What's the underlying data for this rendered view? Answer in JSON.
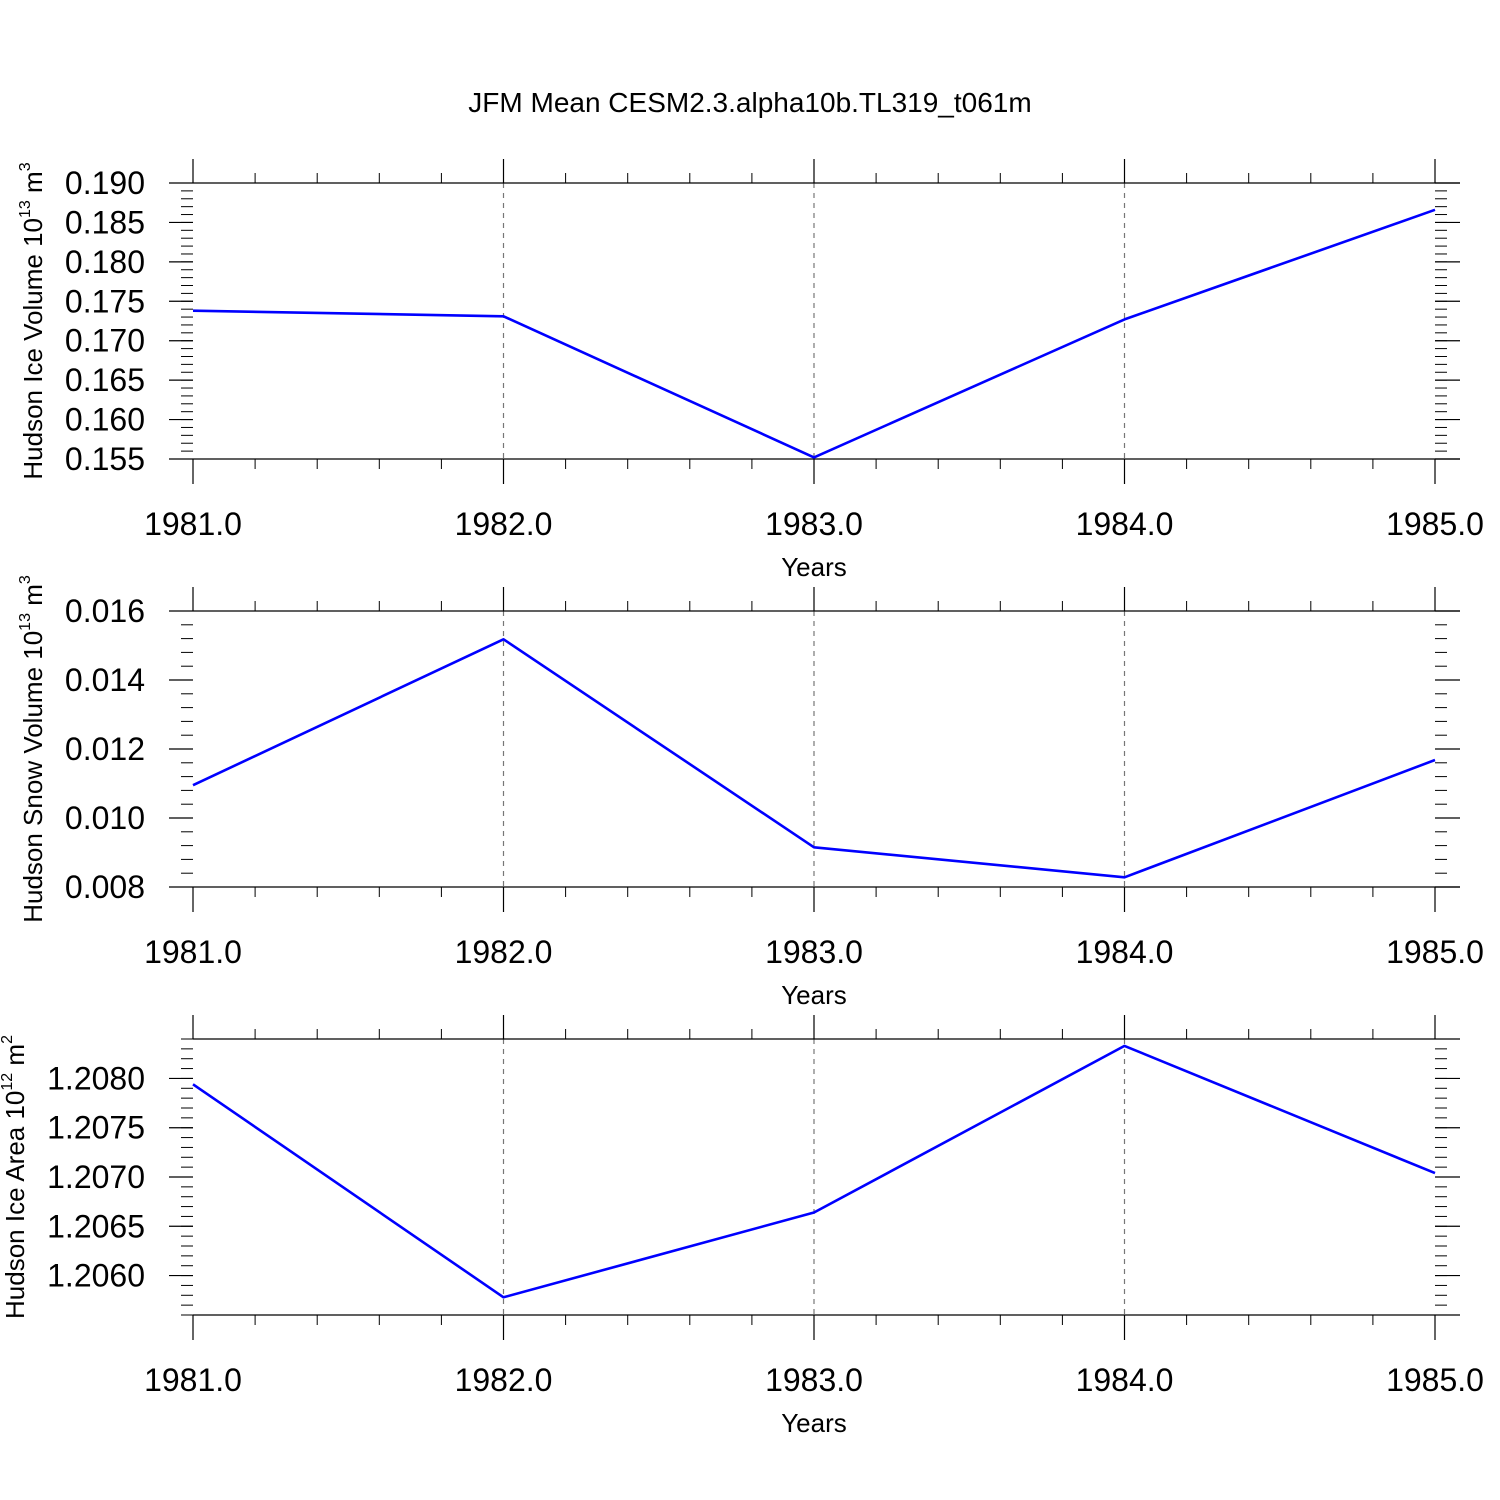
{
  "title": "JFM Mean CESM2.3.alpha10b.TL319_t061m",
  "colors": {
    "series": "#0000ff",
    "grid": "#777777"
  },
  "chart_data": [
    {
      "type": "line",
      "ylabel_prefix": "Hudson Ice Volume 10",
      "ylabel_exp": "13",
      "ylabel_unit": " m",
      "ylabel_unit_exp": "3",
      "xlabel": "Years",
      "x": [
        1981,
        1982,
        1983,
        1984,
        1985
      ],
      "x_tick_labels": [
        "1981.0",
        "1982.0",
        "1983.0",
        "1984.0",
        "1985.0"
      ],
      "y": [
        0.1738,
        0.1731,
        0.1552,
        0.1727,
        0.1866
      ],
      "ylim": [
        0.155,
        0.19
      ],
      "y_ticks": [
        0.155,
        0.16,
        0.165,
        0.17,
        0.175,
        0.18,
        0.185,
        0.19
      ],
      "y_tick_labels": [
        "0.155",
        "0.160",
        "0.165",
        "0.170",
        "0.175",
        "0.180",
        "0.185",
        "0.190"
      ],
      "grid": "vertical-dashed"
    },
    {
      "type": "line",
      "ylabel_prefix": "Hudson Snow Volume 10",
      "ylabel_exp": "13",
      "ylabel_unit": " m",
      "ylabel_unit_exp": "3",
      "xlabel": "Years",
      "x": [
        1981,
        1982,
        1983,
        1984,
        1985
      ],
      "x_tick_labels": [
        "1981.0",
        "1982.0",
        "1983.0",
        "1984.0",
        "1985.0"
      ],
      "y": [
        0.01095,
        0.01518,
        0.00915,
        0.00828,
        0.01168
      ],
      "ylim": [
        0.008,
        0.016
      ],
      "y_ticks": [
        0.008,
        0.01,
        0.012,
        0.014,
        0.016
      ],
      "y_tick_labels": [
        "0.008",
        "0.010",
        "0.012",
        "0.014",
        "0.016"
      ],
      "grid": "vertical-dashed"
    },
    {
      "type": "line",
      "ylabel_prefix": "Hudson Ice Area 10",
      "ylabel_exp": "12",
      "ylabel_unit": " m",
      "ylabel_unit_exp": "2",
      "xlabel": "Years",
      "x": [
        1981,
        1982,
        1983,
        1984,
        1985
      ],
      "x_tick_labels": [
        "1981.0",
        "1982.0",
        "1983.0",
        "1984.0",
        "1985.0"
      ],
      "y": [
        1.20794,
        1.20578,
        1.20664,
        1.20833,
        1.20704
      ],
      "ylim": [
        1.2056,
        1.2084
      ],
      "y_ticks": [
        1.206,
        1.2065,
        1.207,
        1.2075,
        1.208
      ],
      "y_tick_labels": [
        "1.2060",
        "1.2065",
        "1.2070",
        "1.2075",
        "1.2080"
      ],
      "grid": "vertical-dashed"
    }
  ]
}
